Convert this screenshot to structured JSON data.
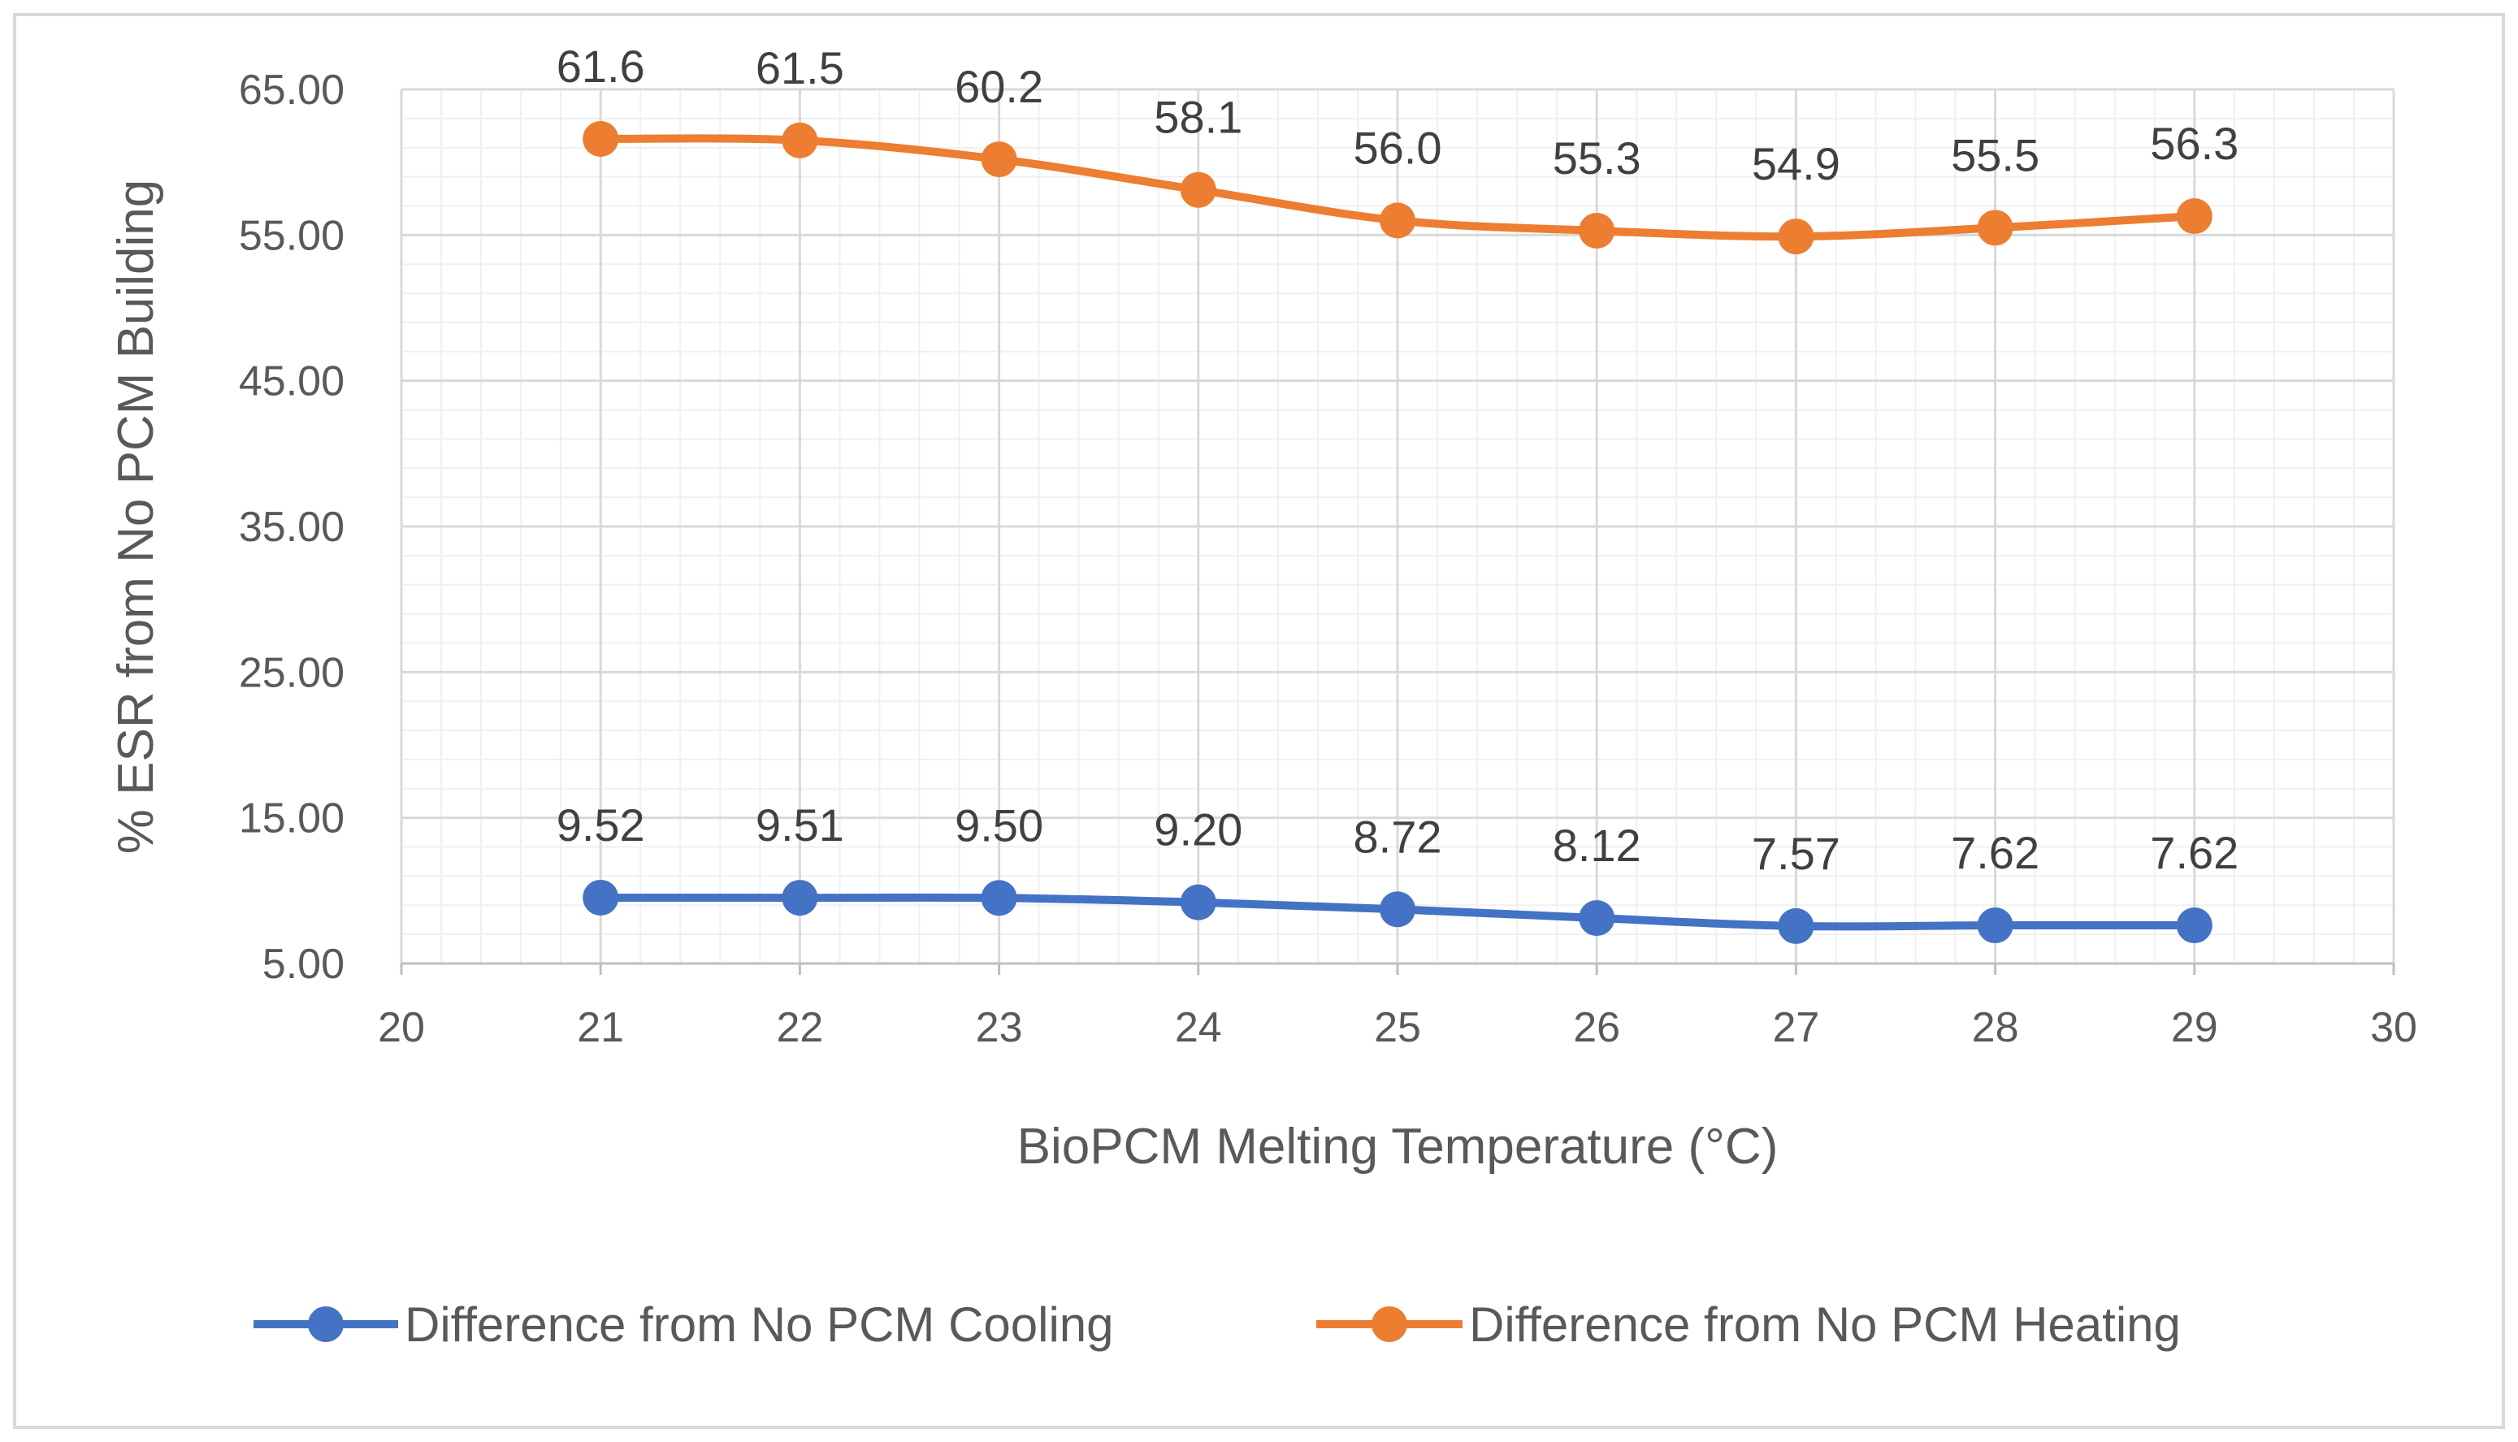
{
  "chart_data": {
    "type": "line",
    "title": "",
    "xlabel": "BioPCM Melting Temperature (°C)",
    "ylabel": "% ESR from No PCM Building",
    "xlim": [
      20,
      30
    ],
    "ylim": [
      5,
      65
    ],
    "x_ticks": [
      "20",
      "21",
      "22",
      "23",
      "24",
      "25",
      "26",
      "27",
      "28",
      "29",
      "30"
    ],
    "y_ticks": [
      "5.00",
      "15.00",
      "25.00",
      "35.00",
      "45.00",
      "55.00",
      "65.00"
    ],
    "grid": true,
    "legend_position": "bottom",
    "x": [
      21,
      22,
      23,
      24,
      25,
      26,
      27,
      28,
      29
    ],
    "series": [
      {
        "name": "Difference from No PCM Cooling",
        "color": "#4472C4",
        "values": [
          9.52,
          9.51,
          9.5,
          9.2,
          8.72,
          8.12,
          7.57,
          7.62,
          7.62
        ],
        "labels": [
          "9.52",
          "9.51",
          "9.50",
          "9.20",
          "8.72",
          "8.12",
          "7.57",
          "7.62",
          "7.62"
        ]
      },
      {
        "name": "Difference from No PCM Heating",
        "color": "#ED7D31",
        "values": [
          61.6,
          61.5,
          60.2,
          58.1,
          56.0,
          55.3,
          54.9,
          55.5,
          56.3
        ],
        "labels": [
          "61.6",
          "61.5",
          "60.2",
          "58.1",
          "56.0",
          "55.3",
          "54.9",
          "55.5",
          "56.3"
        ]
      }
    ]
  }
}
